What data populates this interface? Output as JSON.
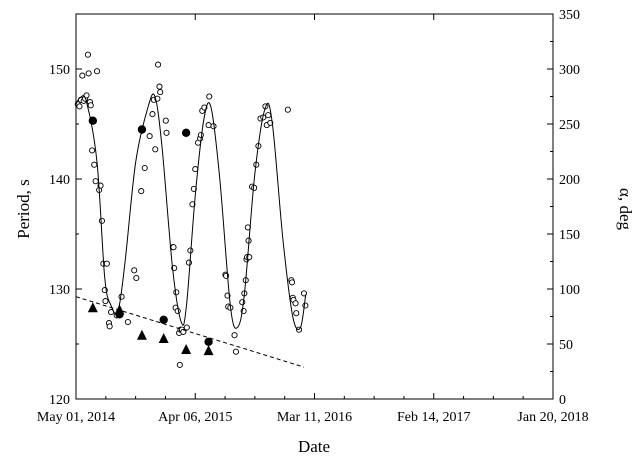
{
  "chart_data": {
    "type": "scatter",
    "title": "",
    "xlabel": "Date",
    "ylabel": "Period, s",
    "y2label": "α, deg",
    "x_ticks": [
      "May 01, 2014",
      "Apr 06, 2015",
      "Mar 11, 2016",
      "Feb 14, 2017",
      "Jan 20, 2018"
    ],
    "x_tick_days": [
      0,
      340,
      680,
      1020,
      1360
    ],
    "y_ticks": [
      "120",
      "130",
      "140",
      "150"
    ],
    "y_tick_values": [
      120,
      130,
      140,
      150
    ],
    "y2_ticks": [
      "0",
      "50",
      "100",
      "150",
      "200",
      "250",
      "300",
      "350"
    ],
    "y2_tick_values": [
      0,
      50,
      100,
      150,
      200,
      250,
      300,
      350
    ],
    "xlim_days": [
      0,
      1360
    ],
    "ylim": [
      120,
      155
    ],
    "y2lim": [
      0,
      350
    ],
    "grid": false,
    "series": [
      {
        "marker": "open-circle",
        "axis": "left",
        "points": [
          [
            5,
            146.8
          ],
          [
            10,
            146.6
          ],
          [
            14,
            147.2
          ],
          [
            18,
            149.4
          ],
          [
            22,
            147.1
          ],
          [
            26,
            147.3
          ],
          [
            30,
            147.6
          ],
          [
            34,
            151.3
          ],
          [
            36,
            149.6
          ],
          [
            40,
            147.0
          ],
          [
            42,
            146.7
          ],
          [
            46,
            142.6
          ],
          [
            52,
            141.3
          ],
          [
            56,
            139.8
          ],
          [
            60,
            149.8
          ],
          [
            66,
            139.0
          ],
          [
            70,
            139.4
          ],
          [
            74,
            136.2
          ],
          [
            78,
            132.3
          ],
          [
            82,
            129.9
          ],
          [
            84,
            128.9
          ],
          [
            88,
            132.3
          ],
          [
            94,
            126.9
          ],
          [
            96,
            126.6
          ],
          [
            100,
            127.9
          ],
          [
            116,
            127.6
          ],
          [
            130,
            129.3
          ],
          [
            148,
            127.0
          ],
          [
            166,
            131.7
          ],
          [
            172,
            131.0
          ],
          [
            186,
            138.9
          ],
          [
            196,
            141.0
          ],
          [
            210,
            143.9
          ],
          [
            218,
            145.9
          ],
          [
            222,
            147.2
          ],
          [
            226,
            142.7
          ],
          [
            232,
            147.3
          ],
          [
            234,
            150.4
          ],
          [
            238,
            148.4
          ],
          [
            240,
            147.9
          ],
          [
            256,
            145.3
          ],
          [
            258,
            144.2
          ],
          [
            276,
            133.8
          ],
          [
            278,
            133.8
          ],
          [
            280,
            131.9
          ],
          [
            284,
            128.3
          ],
          [
            286,
            129.7
          ],
          [
            290,
            128.0
          ],
          [
            294,
            126.0
          ],
          [
            296,
            123.1
          ],
          [
            298,
            126.3
          ],
          [
            302,
            126.3
          ],
          [
            306,
            126.1
          ],
          [
            316,
            126.5
          ],
          [
            322,
            132.4
          ],
          [
            326,
            133.5
          ],
          [
            332,
            137.7
          ],
          [
            336,
            139.1
          ],
          [
            340,
            140.9
          ],
          [
            348,
            143.3
          ],
          [
            354,
            143.7
          ],
          [
            356,
            144.0
          ],
          [
            360,
            146.2
          ],
          [
            366,
            146.5
          ],
          [
            378,
            144.9
          ],
          [
            380,
            147.5
          ],
          [
            392,
            144.8
          ],
          [
            426,
            131.3
          ],
          [
            428,
            131.2
          ],
          [
            432,
            129.4
          ],
          [
            434,
            128.4
          ],
          [
            440,
            128.3
          ],
          [
            452,
            125.8
          ],
          [
            456,
            124.3
          ],
          [
            474,
            128.8
          ],
          [
            478,
            128.0
          ],
          [
            480,
            129.6
          ],
          [
            484,
            130.8
          ],
          [
            486,
            132.7
          ],
          [
            488,
            132.9
          ],
          [
            490,
            135.6
          ],
          [
            492,
            134.4
          ],
          [
            494,
            132.9
          ],
          [
            502,
            139.3
          ],
          [
            508,
            139.2
          ],
          [
            514,
            141.3
          ],
          [
            520,
            143.0
          ],
          [
            526,
            145.5
          ],
          [
            534,
            145.6
          ],
          [
            540,
            146.6
          ],
          [
            544,
            144.9
          ],
          [
            548,
            145.8
          ],
          [
            554,
            145.1
          ],
          [
            604,
            146.3
          ],
          [
            614,
            130.8
          ],
          [
            616,
            130.6
          ],
          [
            618,
            129.2
          ],
          [
            620,
            129.0
          ],
          [
            626,
            128.7
          ],
          [
            628,
            127.8
          ],
          [
            636,
            126.3
          ],
          [
            650,
            129.6
          ],
          [
            654,
            128.5
          ]
        ]
      },
      {
        "marker": "filled-circle",
        "axis": "right",
        "points": [
          [
            48,
            253
          ],
          [
            124,
            77
          ],
          [
            188,
            245
          ],
          [
            250,
            72
          ],
          [
            314,
            242
          ],
          [
            378,
            52
          ]
        ]
      },
      {
        "marker": "filled-triangle",
        "axis": "right",
        "points": [
          [
            48,
            83
          ],
          [
            124,
            81
          ],
          [
            188,
            58
          ],
          [
            250,
            55
          ],
          [
            314,
            45
          ],
          [
            378,
            44
          ]
        ]
      },
      {
        "type": "line",
        "style": "solid",
        "axis": "left",
        "description_points": [
          [
            0,
            146.8
          ],
          [
            12,
            147.4
          ],
          [
            30,
            147.0
          ],
          [
            60,
            141.5
          ],
          [
            82,
            131.0
          ],
          [
            100,
            128.5
          ],
          [
            120,
            128.0
          ],
          [
            140,
            132.5
          ],
          [
            170,
            141.5
          ],
          [
            205,
            146.5
          ],
          [
            225,
            147.5
          ],
          [
            245,
            143.0
          ],
          [
            275,
            132.0
          ],
          [
            300,
            127.0
          ],
          [
            315,
            128.5
          ],
          [
            340,
            138.5
          ],
          [
            365,
            145.5
          ],
          [
            385,
            146.5
          ],
          [
            410,
            140.0
          ],
          [
            440,
            128.5
          ],
          [
            460,
            126.5
          ],
          [
            480,
            129.5
          ],
          [
            510,
            140.5
          ],
          [
            540,
            146.5
          ],
          [
            560,
            145.0
          ],
          [
            590,
            134.5
          ],
          [
            618,
            127.5
          ],
          [
            640,
            126.5
          ],
          [
            655,
            129.5
          ]
        ]
      },
      {
        "type": "line",
        "style": "dashed",
        "axis": "left",
        "description_points": [
          [
            0,
            129.3
          ],
          [
            650,
            122.9
          ]
        ]
      }
    ]
  }
}
